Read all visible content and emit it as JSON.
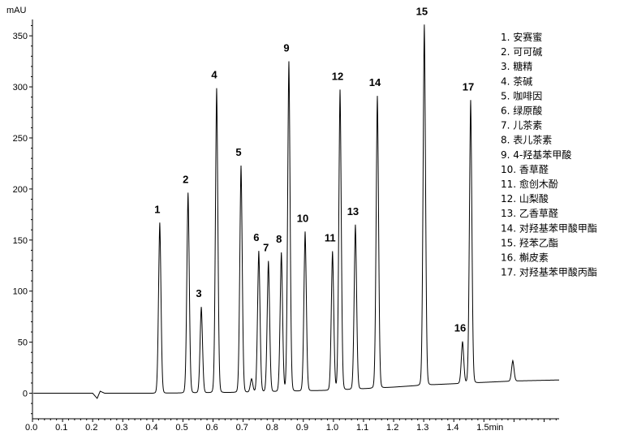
{
  "chart_data": {
    "type": "line",
    "title": "",
    "xlabel": "min",
    "ylabel": "mAU",
    "xlim": [
      0,
      1.75
    ],
    "ylim": [
      -25,
      366
    ],
    "x_ticks": [
      0.0,
      0.1,
      0.2,
      0.3,
      0.4,
      0.5,
      0.6,
      0.7,
      0.8,
      0.9,
      1.0,
      1.1,
      1.2,
      1.3,
      1.4,
      1.5
    ],
    "x_tick_labels": [
      "0.0",
      "0.1",
      "0.2",
      "0.3",
      "0.4",
      "0.5",
      "0.6",
      "0.7",
      "0.8",
      "0.9",
      "1.0",
      "1.1",
      "1.2",
      "1.3",
      "1.4",
      "1.5min"
    ],
    "y_ticks": [
      0,
      50,
      100,
      150,
      200,
      250,
      300,
      350
    ],
    "y_tick_labels": [
      "0",
      "50",
      "100",
      "150",
      "200",
      "250",
      "300",
      "350"
    ],
    "grid": false,
    "line_color": "#000000",
    "legend_placement": "top-right",
    "peaks": [
      {
        "label": "1",
        "rt": 0.423,
        "height": 167
      },
      {
        "label": "2",
        "rt": 0.517,
        "height": 196
      },
      {
        "label": "3",
        "rt": 0.561,
        "height": 84
      },
      {
        "label": "4",
        "rt": 0.612,
        "height": 298
      },
      {
        "label": "5",
        "rt": 0.693,
        "height": 222
      },
      {
        "label": "",
        "rt": 0.728,
        "height": 13
      },
      {
        "label": "6",
        "rt": 0.752,
        "height": 138
      },
      {
        "label": "7",
        "rt": 0.784,
        "height": 128
      },
      {
        "label": "8",
        "rt": 0.827,
        "height": 136
      },
      {
        "label": "9",
        "rt": 0.852,
        "height": 323
      },
      {
        "label": "10",
        "rt": 0.906,
        "height": 156
      },
      {
        "label": "11",
        "rt": 0.997,
        "height": 136
      },
      {
        "label": "12",
        "rt": 1.022,
        "height": 294
      },
      {
        "label": "13",
        "rt": 1.073,
        "height": 161
      },
      {
        "label": "14",
        "rt": 1.146,
        "height": 286
      },
      {
        "label": "15",
        "rt": 1.302,
        "height": 353
      },
      {
        "label": "16",
        "rt": 1.429,
        "height": 41
      },
      {
        "label": "17",
        "rt": 1.456,
        "height": 277
      },
      {
        "label": "",
        "rt": 1.596,
        "height": 20
      }
    ],
    "baseline": [
      [
        0.0,
        0
      ],
      [
        0.2,
        0
      ],
      [
        0.215,
        -5
      ],
      [
        0.225,
        2
      ],
      [
        0.24,
        0
      ],
      [
        0.4,
        0
      ],
      [
        0.7,
        1
      ],
      [
        1.0,
        3
      ],
      [
        1.2,
        6
      ],
      [
        1.3,
        8
      ],
      [
        1.45,
        10
      ],
      [
        1.6,
        12
      ],
      [
        1.75,
        13
      ]
    ],
    "legend": [
      "1. 安赛蜜",
      "2. 可可碱",
      "3. 糖精",
      "4. 茶碱",
      "5. 咖啡因",
      "6. 绿原酸",
      "7. 儿茶素",
      "8. 表儿茶素",
      "9. 4-羟基苯甲酸",
      "10. 香草醛",
      "11. 愈创木酚",
      "12. 山梨酸",
      "13. 乙香草醛",
      "14. 对羟基苯甲酸甲酯",
      "15. 羟苯乙酯",
      "16. 槲皮素",
      "17. 对羟基苯甲酸丙酯"
    ]
  }
}
